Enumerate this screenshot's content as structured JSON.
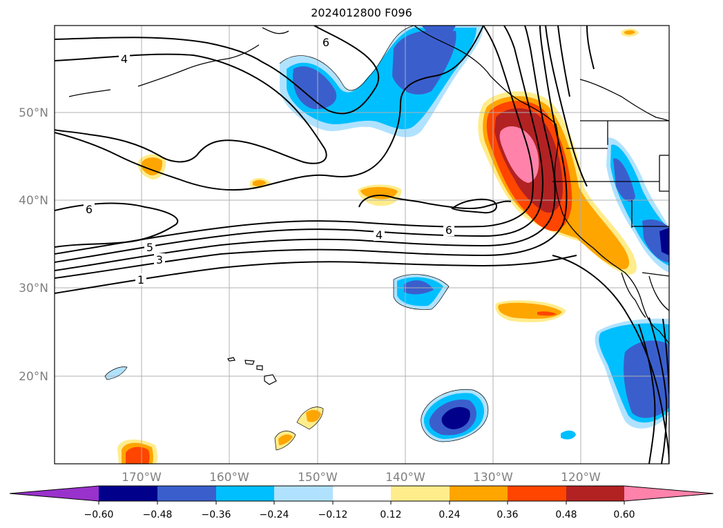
{
  "title": "2024012800 F096",
  "map": {
    "lat_labels": [
      "50°N",
      "40°N",
      "30°N",
      "20°N"
    ],
    "lon_labels": [
      "170°W",
      "160°W",
      "150°W",
      "140°W",
      "130°W",
      "120°W"
    ],
    "grid": true
  },
  "contour_labels": [
    "6",
    "4",
    "6",
    "5",
    "3",
    "1",
    "4",
    "6"
  ],
  "colorbar": {
    "ticks": [
      "−0.60",
      "−0.48",
      "−0.36",
      "−0.24",
      "−0.12",
      "0.12",
      "0.24",
      "0.36",
      "0.48",
      "0.60"
    ],
    "colors": [
      "#9932cc",
      "#00008b",
      "#3a5fcd",
      "#00bfff",
      "#b0e2ff",
      "#ffffff",
      "#ffec8b",
      "#ffa500",
      "#ff4500",
      "#b22222",
      "#ff82ab"
    ],
    "extend": "both"
  }
}
